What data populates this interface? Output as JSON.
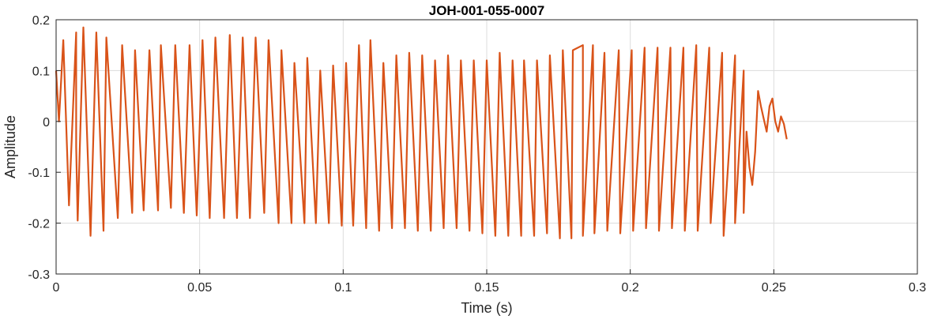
{
  "chart_data": {
    "type": "line",
    "title": "JOH-001-055-0007",
    "xlabel": "Time (s)",
    "ylabel": "Amplitude",
    "xlim": [
      0,
      0.3
    ],
    "ylim": [
      -0.3,
      0.2
    ],
    "xticks": [
      0,
      0.05,
      0.1,
      0.15,
      0.2,
      0.25,
      0.3
    ],
    "xtick_labels": [
      "0",
      "0.05",
      "0.1",
      "0.15",
      "0.2",
      "0.25",
      "0.3"
    ],
    "yticks": [
      -0.3,
      -0.2,
      -0.1,
      0,
      0.1,
      0.2
    ],
    "ytick_labels": [
      "-0.3",
      "-0.2",
      "-0.1",
      "0",
      "0.1",
      "0.2"
    ],
    "grid": true,
    "line_color": "#D95319",
    "series": [
      {
        "peaks": [
          [
            0.0025,
            0.16
          ],
          [
            0.007,
            0.175
          ],
          [
            0.0095,
            0.185
          ],
          [
            0.014,
            0.175
          ],
          [
            0.0175,
            0.165
          ],
          [
            0.023,
            0.15
          ],
          [
            0.0275,
            0.14
          ],
          [
            0.0325,
            0.14
          ],
          [
            0.0365,
            0.15
          ],
          [
            0.0415,
            0.15
          ],
          [
            0.0465,
            0.15
          ],
          [
            0.051,
            0.16
          ],
          [
            0.0555,
            0.165
          ],
          [
            0.0605,
            0.17
          ],
          [
            0.065,
            0.165
          ],
          [
            0.0695,
            0.165
          ],
          [
            0.074,
            0.16
          ],
          [
            0.0785,
            0.14
          ],
          [
            0.083,
            0.115
          ],
          [
            0.0875,
            0.125
          ],
          [
            0.092,
            0.1
          ],
          [
            0.0965,
            0.11
          ],
          [
            0.101,
            0.115
          ],
          [
            0.1055,
            0.15
          ],
          [
            0.1095,
            0.16
          ],
          [
            0.114,
            0.115
          ],
          [
            0.1185,
            0.13
          ],
          [
            0.123,
            0.135
          ],
          [
            0.1275,
            0.13
          ],
          [
            0.132,
            0.12
          ],
          [
            0.1365,
            0.13
          ],
          [
            0.141,
            0.12
          ],
          [
            0.1455,
            0.12
          ],
          [
            0.15,
            0.12
          ],
          [
            0.1545,
            0.135
          ],
          [
            0.159,
            0.12
          ],
          [
            0.163,
            0.12
          ],
          [
            0.1675,
            0.12
          ],
          [
            0.172,
            0.13
          ],
          [
            0.1765,
            0.14
          ],
          [
            0.18,
            0.14
          ],
          [
            0.1835,
            0.15
          ],
          [
            0.187,
            0.15
          ],
          [
            0.191,
            0.135
          ],
          [
            0.196,
            0.14
          ],
          [
            0.2005,
            0.14
          ],
          [
            0.205,
            0.145
          ],
          [
            0.2095,
            0.145
          ],
          [
            0.214,
            0.145
          ],
          [
            0.2185,
            0.145
          ],
          [
            0.223,
            0.15
          ],
          [
            0.2275,
            0.145
          ],
          [
            0.232,
            0.135
          ],
          [
            0.2365,
            0.13
          ],
          [
            0.2395,
            0.1
          ]
        ],
        "troughs": [
          [
            0.0045,
            -0.165
          ],
          [
            0.007,
            -0.05
          ],
          [
            0.0075,
            -0.195
          ],
          [
            0.012,
            -0.225
          ],
          [
            0.0165,
            -0.215
          ],
          [
            0.0215,
            -0.19
          ],
          [
            0.0265,
            -0.18
          ],
          [
            0.0305,
            -0.175
          ],
          [
            0.0355,
            -0.175
          ],
          [
            0.04,
            -0.17
          ],
          [
            0.0445,
            -0.18
          ],
          [
            0.049,
            -0.185
          ],
          [
            0.0535,
            -0.19
          ],
          [
            0.0585,
            -0.19
          ],
          [
            0.063,
            -0.19
          ],
          [
            0.0675,
            -0.19
          ],
          [
            0.0725,
            -0.18
          ],
          [
            0.0775,
            -0.2
          ],
          [
            0.082,
            -0.2
          ],
          [
            0.0865,
            -0.2
          ],
          [
            0.0905,
            -0.2
          ],
          [
            0.095,
            -0.2
          ],
          [
            0.0995,
            -0.205
          ],
          [
            0.1035,
            -0.205
          ],
          [
            0.108,
            -0.21
          ],
          [
            0.1125,
            -0.215
          ],
          [
            0.117,
            -0.21
          ],
          [
            0.1215,
            -0.21
          ],
          [
            0.126,
            -0.215
          ],
          [
            0.1305,
            -0.215
          ],
          [
            0.135,
            -0.21
          ],
          [
            0.1395,
            -0.21
          ],
          [
            0.144,
            -0.215
          ],
          [
            0.1485,
            -0.22
          ],
          [
            0.153,
            -0.225
          ],
          [
            0.1575,
            -0.225
          ],
          [
            0.162,
            -0.225
          ],
          [
            0.1665,
            -0.225
          ],
          [
            0.171,
            -0.22
          ],
          [
            0.1755,
            -0.23
          ],
          [
            0.1795,
            -0.23
          ],
          [
            0.1835,
            -0.225
          ],
          [
            0.1875,
            -0.22
          ],
          [
            0.192,
            -0.215
          ],
          [
            0.1965,
            -0.22
          ],
          [
            0.201,
            -0.215
          ],
          [
            0.2055,
            -0.21
          ],
          [
            0.21,
            -0.215
          ],
          [
            0.2145,
            -0.21
          ],
          [
            0.219,
            -0.215
          ],
          [
            0.2235,
            -0.215
          ],
          [
            0.228,
            -0.2
          ],
          [
            0.2325,
            -0.225
          ],
          [
            0.2365,
            -0.2
          ],
          [
            0.2395,
            -0.18
          ]
        ],
        "tail": [
          [
            0.2395,
            0.1
          ],
          [
            0.2405,
            -0.02
          ],
          [
            0.2415,
            -0.09
          ],
          [
            0.2425,
            -0.125
          ],
          [
            0.2435,
            -0.06
          ],
          [
            0.2445,
            0.06
          ],
          [
            0.2455,
            0.03
          ],
          [
            0.2465,
            0.005
          ],
          [
            0.2475,
            -0.02
          ],
          [
            0.2485,
            0.03
          ],
          [
            0.2495,
            0.045
          ],
          [
            0.2505,
            0.0
          ],
          [
            0.2515,
            -0.02
          ],
          [
            0.2525,
            0.01
          ],
          [
            0.2535,
            -0.005
          ],
          [
            0.2545,
            -0.035
          ]
        ]
      }
    ]
  }
}
